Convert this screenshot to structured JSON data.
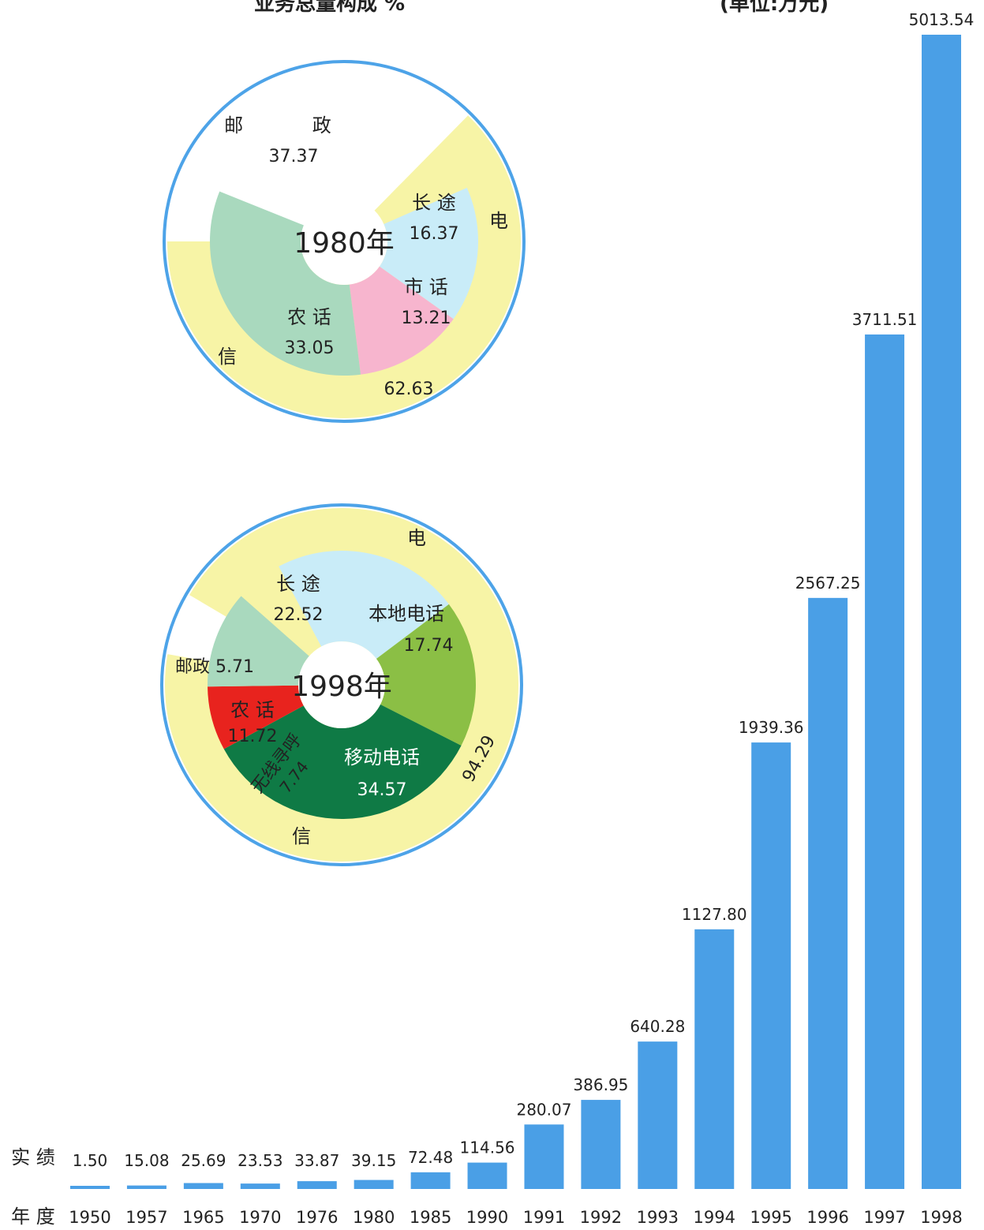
{
  "header": {
    "left_title": "业务总量构成 %",
    "unit": "(单位:万元)"
  },
  "chart_data": [
    {
      "type": "bar",
      "row_labels": {
        "values": "实 绩",
        "years": "年 度"
      },
      "categories": [
        "1950",
        "1957",
        "1965",
        "1970",
        "1976",
        "1980",
        "1985",
        "1990",
        "1991",
        "1992",
        "1993",
        "1994",
        "1995",
        "1996",
        "1997",
        "1998"
      ],
      "values": [
        1.5,
        15.08,
        25.69,
        23.53,
        33.87,
        39.15,
        72.48,
        114.56,
        280.07,
        386.95,
        640.28,
        1127.8,
        1939.36,
        2567.25,
        3711.51,
        5013.54
      ],
      "value_labels": [
        "1.50",
        "15.08",
        "25.69",
        "23.53",
        "33.87",
        "39.15",
        "72.48",
        "114.56",
        "280.07",
        "386.95",
        "640.28",
        "1127.80",
        "1939.36",
        "2567.25",
        "3711.51",
        "5013.54"
      ],
      "ylim": [
        0,
        5013.54
      ],
      "grid": false,
      "colors": {
        "bar": "#4a9fe6"
      }
    },
    {
      "type": "pie",
      "center_label": "1980年",
      "outer": [
        {
          "name": "邮 政",
          "value": 37.37,
          "color": "#ffffff"
        },
        {
          "name": "电 信",
          "value": 62.63,
          "color": "#f7f4a6"
        }
      ],
      "inner": [
        {
          "name": "长 途",
          "value": 16.37,
          "color": "#c9ecf8"
        },
        {
          "name": "市 话",
          "value": 13.21,
          "color": "#f7b5ce"
        },
        {
          "name": "农 话",
          "value": 33.05,
          "color": "#a9d9be"
        }
      ],
      "telecom_total": "62.63",
      "ring_color": "#4da3e8"
    },
    {
      "type": "pie",
      "center_label": "1998年",
      "outer": [
        {
          "name": "邮政",
          "value": 5.71,
          "color": "#ffffff"
        },
        {
          "name": "电 信",
          "value": 94.29,
          "color": "#f7f4a6"
        }
      ],
      "inner": [
        {
          "name": "长 途",
          "value": 22.52,
          "color": "#c9ecf8"
        },
        {
          "name": "本地电话",
          "value": 17.74,
          "color": "#8bbf45"
        },
        {
          "name": "移动电话",
          "value": 34.57,
          "color": "#0f7a45"
        },
        {
          "name": "无线寻呼",
          "value": 7.74,
          "color": "#e8231e"
        },
        {
          "name": "农 话",
          "value": 11.72,
          "color": "#a9d9be"
        }
      ],
      "telecom_total": "94.29",
      "ring_color": "#4da3e8"
    }
  ]
}
